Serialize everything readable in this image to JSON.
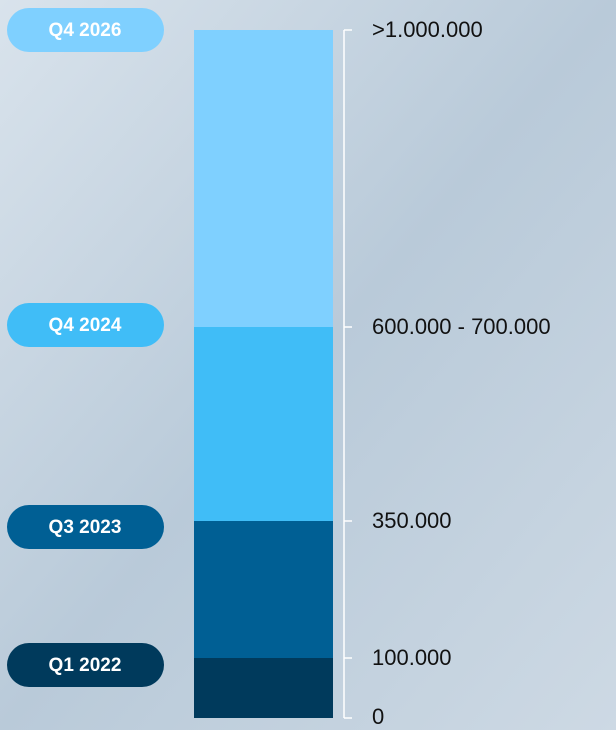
{
  "milestones": [
    {
      "quarter": "Q1 2022",
      "capacity": "100.000",
      "color": "#003a5c"
    },
    {
      "quarter": "Q3 2023",
      "capacity": "350.000",
      "color": "#005f94"
    },
    {
      "quarter": "Q4 2024",
      "capacity": "600.000 - 700.000",
      "color": "#40bdf7"
    },
    {
      "quarter": "Q4 2026",
      "capacity": ">1.000.000",
      "color": "#7fd0ff"
    }
  ],
  "axis_base": "0"
}
